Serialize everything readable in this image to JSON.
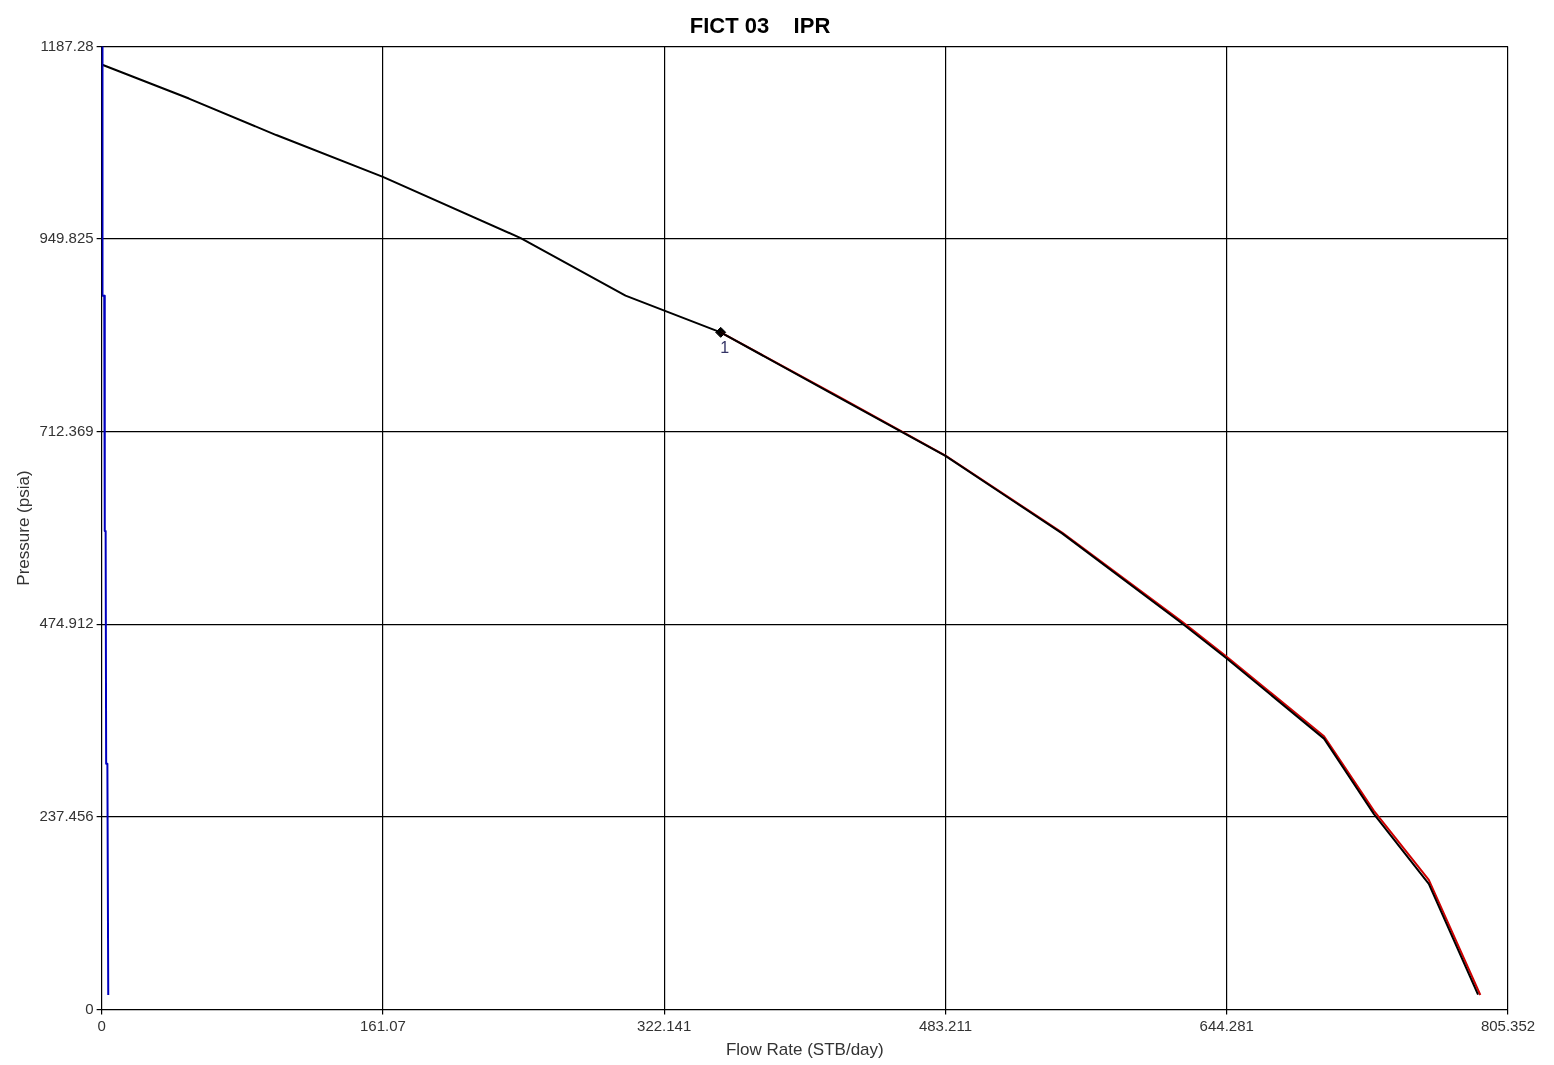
{
  "chart_data": {
    "type": "line",
    "title": "FICT 03    IPR",
    "xlabel": "Flow Rate (STB/day)",
    "ylabel": "Pressure (psia)",
    "xlim": [
      0,
      805.352
    ],
    "ylim": [
      0,
      1187.28
    ],
    "xticks": [
      0,
      161.07,
      322.141,
      483.211,
      644.281,
      805.352
    ],
    "yticks": [
      0,
      237.456,
      474.912,
      712.369,
      949.825,
      1187.28
    ],
    "grid": true,
    "marker": "none",
    "series": [
      {
        "color": "#0000c0",
        "x": [
          0.3,
          0.5,
          1.5,
          1.8,
          2.3,
          2.6,
          3.3,
          3.8
        ],
        "values": [
          1187.28,
          880,
          880,
          590,
          590,
          303,
          303,
          18
        ]
      },
      {
        "color": "#000000",
        "x": [
          0,
          50,
          100,
          161.07,
          240,
          300,
          354.5,
          420,
          483.2,
          550,
          618.8,
          644.3,
          700,
          728.6,
          760,
          788.2
        ],
        "values": [
          1165,
          1123,
          1078,
          1026.5,
          951,
          880,
          834.8,
          757,
          682.6,
          587,
          476,
          432.8,
          334,
          241,
          155,
          18.5
        ]
      },
      {
        "color": "#d00000",
        "x": [
          354.5,
          420,
          483.2,
          550,
          618.8,
          644.3,
          700,
          728.6,
          760,
          789.5
        ],
        "values": [
          834.8,
          758,
          683,
          588,
          478,
          435,
          337,
          245,
          160,
          18
        ]
      },
      {
        "type": "scatter",
        "marker": "diamond",
        "color": "#000000",
        "x": [
          354.5
        ],
        "values": [
          834.8
        ]
      }
    ],
    "annotations": [
      {
        "text": "1",
        "x": 354.5,
        "y": 834.8
      }
    ]
  }
}
